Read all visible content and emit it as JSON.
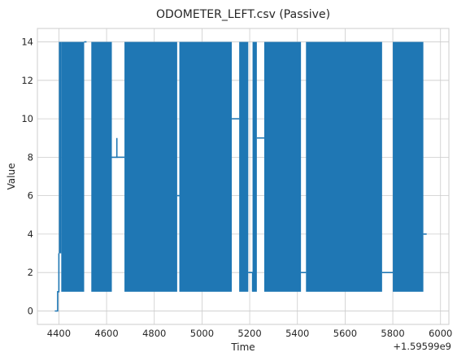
{
  "chart_data": {
    "type": "line",
    "title": "ODOMETER_LEFT.csv (Passive)",
    "xlabel": "Time",
    "ylabel": "Value",
    "x_offset_label": "+1.59599e9",
    "xlim": [
      4310,
      6035
    ],
    "ylim": [
      -0.7,
      14.7
    ],
    "x_ticks": [
      4400,
      4600,
      4800,
      5000,
      5200,
      5400,
      5600,
      5800,
      6000
    ],
    "y_ticks": [
      0,
      2,
      4,
      6,
      8,
      10,
      12,
      14
    ],
    "grid": true,
    "line_color": "#1f77b4",
    "series": [
      {
        "values_note_omitted": true,
        "segments": [
          {
            "kind": "line",
            "points": [
              [
                4383,
                0
              ],
              [
                4395,
                0
              ],
              [
                4395,
                1
              ],
              [
                4400,
                1
              ],
              [
                4400,
                3
              ]
            ]
          },
          {
            "kind": "oscillation",
            "x0": 4400,
            "x1": 4410,
            "ymin": 3,
            "ymax": 14
          },
          {
            "kind": "oscillation",
            "x0": 4410,
            "x1": 4506,
            "ymin": 1,
            "ymax": 14
          },
          {
            "kind": "line",
            "points": [
              [
                4506,
                14
              ],
              [
                4516,
                14
              ]
            ]
          },
          {
            "kind": "oscillation",
            "x0": 4536,
            "x1": 4622,
            "ymin": 1,
            "ymax": 14
          },
          {
            "kind": "line",
            "points": [
              [
                4622,
                8
              ],
              [
                4643,
                8
              ],
              [
                4643,
                9
              ]
            ]
          },
          {
            "kind": "line",
            "points": [
              [
                4643,
                8
              ],
              [
                4675,
                8
              ]
            ]
          },
          {
            "kind": "oscillation",
            "x0": 4675,
            "x1": 4896,
            "ymin": 1,
            "ymax": 14
          },
          {
            "kind": "line",
            "points": [
              [
                4896,
                6
              ],
              [
                4905,
                6
              ]
            ]
          },
          {
            "kind": "oscillation",
            "x0": 4905,
            "x1": 5125,
            "ymin": 1,
            "ymax": 14
          },
          {
            "kind": "line",
            "points": [
              [
                5125,
                10
              ],
              [
                5156,
                10
              ]
            ]
          },
          {
            "kind": "oscillation",
            "x0": 5156,
            "x1": 5194,
            "ymin": 1,
            "ymax": 14
          },
          {
            "kind": "line",
            "points": [
              [
                5194,
                2
              ],
              [
                5212,
                2
              ],
              [
                5212,
                1
              ]
            ]
          },
          {
            "kind": "oscillation",
            "x0": 5212,
            "x1": 5230,
            "ymin": 1,
            "ymax": 14
          },
          {
            "kind": "line",
            "points": [
              [
                5230,
                9
              ],
              [
                5261,
                9
              ]
            ]
          },
          {
            "kind": "oscillation",
            "x0": 5261,
            "x1": 5415,
            "ymin": 1,
            "ymax": 14
          },
          {
            "kind": "line",
            "points": [
              [
                5415,
                2
              ],
              [
                5436,
                2
              ]
            ]
          },
          {
            "kind": "oscillation",
            "x0": 5436,
            "x1": 5755,
            "ymin": 1,
            "ymax": 14
          },
          {
            "kind": "line",
            "points": [
              [
                5755,
                2
              ],
              [
                5800,
                2
              ]
            ]
          },
          {
            "kind": "oscillation",
            "x0": 5800,
            "x1": 5928,
            "ymin": 1,
            "ymax": 14
          },
          {
            "kind": "line",
            "points": [
              [
                5928,
                4
              ],
              [
                5942,
                4
              ]
            ]
          }
        ]
      }
    ]
  }
}
